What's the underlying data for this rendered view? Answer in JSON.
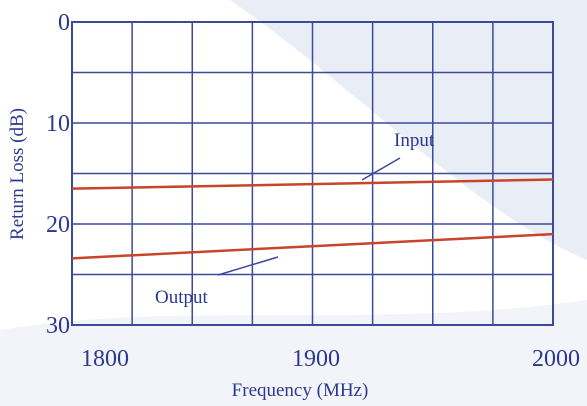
{
  "chart_data": {
    "type": "line",
    "xlabel": "Frequency (MHz)",
    "ylabel": "Return Loss (dB)",
    "xlim": [
      1800,
      2000
    ],
    "ylim": [
      0,
      30
    ],
    "y_inverted": true,
    "x_ticks": [
      "1800",
      "1900",
      "2000"
    ],
    "y_ticks": [
      "0",
      "10",
      "20",
      "30"
    ],
    "grid": true,
    "series": [
      {
        "name": "Input",
        "x": [
          1780,
          2000
        ],
        "values": [
          16.5,
          15.6
        ]
      },
      {
        "name": "Output",
        "x": [
          1780,
          2000
        ],
        "values": [
          23.4,
          21.0
        ]
      }
    ],
    "annotations": [
      {
        "text": "Input",
        "series": "Input"
      },
      {
        "text": "Output",
        "series": "Output"
      }
    ],
    "colors": {
      "line": "#c8442a",
      "grid": "#3b4a9a",
      "text": "#2b3990",
      "background_shape": "#e8ecf5"
    }
  }
}
